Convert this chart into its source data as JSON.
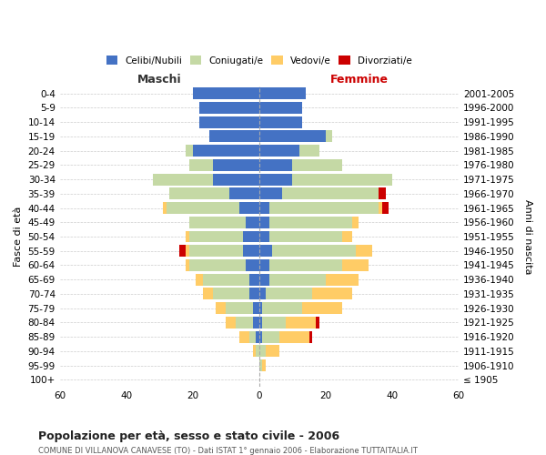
{
  "age_groups": [
    "0-4",
    "5-9",
    "10-14",
    "15-19",
    "20-24",
    "25-29",
    "30-34",
    "35-39",
    "40-44",
    "45-49",
    "50-54",
    "55-59",
    "60-64",
    "65-69",
    "70-74",
    "75-79",
    "80-84",
    "85-89",
    "90-94",
    "95-99",
    "100+"
  ],
  "birth_years": [
    "2001-2005",
    "1996-2000",
    "1991-1995",
    "1986-1990",
    "1981-1985",
    "1976-1980",
    "1971-1975",
    "1966-1970",
    "1961-1965",
    "1956-1960",
    "1951-1955",
    "1946-1950",
    "1941-1945",
    "1936-1940",
    "1931-1935",
    "1926-1930",
    "1921-1925",
    "1916-1920",
    "1911-1915",
    "1906-1910",
    "≤ 1905"
  ],
  "maschi_celibe": [
    20,
    18,
    18,
    15,
    20,
    14,
    14,
    9,
    6,
    4,
    5,
    5,
    4,
    3,
    3,
    2,
    2,
    1,
    0,
    0,
    0
  ],
  "maschi_coniugato": [
    0,
    0,
    0,
    0,
    2,
    7,
    18,
    18,
    22,
    17,
    16,
    16,
    17,
    14,
    11,
    8,
    5,
    2,
    1,
    0,
    0
  ],
  "maschi_vedovo": [
    0,
    0,
    0,
    0,
    0,
    0,
    0,
    0,
    1,
    0,
    1,
    1,
    1,
    2,
    3,
    3,
    3,
    3,
    1,
    0,
    0
  ],
  "maschi_divorziato": [
    0,
    0,
    0,
    0,
    0,
    0,
    0,
    0,
    0,
    0,
    0,
    2,
    0,
    0,
    0,
    0,
    0,
    0,
    0,
    0,
    0
  ],
  "femmine_celibe": [
    14,
    13,
    13,
    20,
    12,
    10,
    10,
    7,
    3,
    3,
    3,
    4,
    3,
    3,
    2,
    1,
    1,
    1,
    0,
    0,
    0
  ],
  "femmine_coniugato": [
    0,
    0,
    0,
    2,
    6,
    15,
    30,
    29,
    33,
    25,
    22,
    25,
    22,
    17,
    14,
    12,
    7,
    5,
    2,
    1,
    0
  ],
  "femmine_vedovo": [
    0,
    0,
    0,
    0,
    0,
    0,
    0,
    0,
    1,
    2,
    3,
    5,
    8,
    10,
    12,
    12,
    9,
    9,
    4,
    1,
    0
  ],
  "femmine_divorziato": [
    0,
    0,
    0,
    0,
    0,
    0,
    0,
    2,
    2,
    0,
    0,
    0,
    0,
    0,
    0,
    0,
    1,
    1,
    0,
    0,
    0
  ],
  "colors": {
    "celibe": "#4472C4",
    "coniugato": "#C5D9A5",
    "vedovo": "#FFCC66",
    "divorziato": "#CC0000"
  },
  "legend_labels": [
    "Celibi/Nubili",
    "Coniugati/e",
    "Vedovi/e",
    "Divorziati/e"
  ],
  "title": "Popolazione per età, sesso e stato civile - 2006",
  "subtitle": "COMUNE DI VILLANOVA CANAVESE (TO) - Dati ISTAT 1° gennaio 2006 - Elaborazione TUTTAITALIA.IT",
  "xlabel_left": "Maschi",
  "xlabel_right": "Femmine",
  "ylabel_left": "Fasce di età",
  "ylabel_right": "Anni di nascita",
  "xlim": 60,
  "bg_color": "#ffffff",
  "grid_color": "#cccccc"
}
